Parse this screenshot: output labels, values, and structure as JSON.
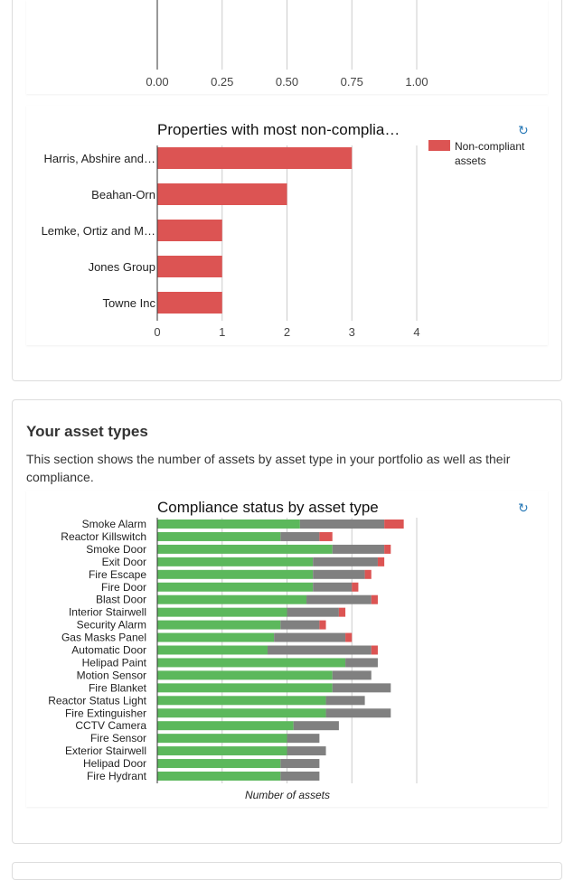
{
  "colors": {
    "bar_red": "#dc5453",
    "green": "#5cb85c",
    "gray": "#808080",
    "grid": "#cccccc",
    "axis": "#333333",
    "refresh": "#2a7ab7"
  },
  "top_axis": {
    "ticks": [
      "0.00",
      "0.25",
      "0.50",
      "0.75",
      "1.00"
    ]
  },
  "properties_chart": {
    "refresh_icon": "refresh-icon",
    "legend_label": "Non-compliant assets"
  },
  "asset_section": {
    "title": "Your asset types",
    "description": "This section shows the number of assets by asset type in your portfolio as well as their compliance.",
    "refresh_icon": "refresh-icon"
  },
  "chart_data": [
    {
      "type": "bar",
      "orientation": "horizontal",
      "title": "",
      "xlim": [
        0,
        1
      ],
      "x_ticks": [
        "0.00",
        "0.25",
        "0.50",
        "0.75",
        "1.00"
      ],
      "grid": true
    },
    {
      "type": "bar",
      "orientation": "horizontal",
      "title": "Properties with most non-complia…",
      "categories": [
        "Harris, Abshire and…",
        "Beahan-Orn",
        "Lemke, Ortiz and M…",
        "Jones Group",
        "Towne Inc"
      ],
      "series": [
        {
          "name": "Non-compliant assets",
          "values": [
            3,
            2,
            1,
            1,
            1
          ]
        }
      ],
      "xlim": [
        0,
        4
      ],
      "x_ticks": [
        "0",
        "1",
        "2",
        "3",
        "4"
      ],
      "legend": "right",
      "grid": true
    },
    {
      "type": "bar",
      "orientation": "horizontal",
      "stacked": true,
      "title": "Compliance status by asset type",
      "xlabel": "Number of assets",
      "xlim": [
        0,
        4
      ],
      "grid": true,
      "categories": [
        "Smoke Alarm",
        "Reactor Killswitch",
        "Smoke Door",
        "Exit Door",
        "Fire Escape",
        "Fire Door",
        "Blast Door",
        "Interior Stairwell",
        "Security Alarm",
        "Gas Masks Panel",
        "Automatic Door",
        "Helipad Paint",
        "Motion Sensor",
        "Fire Blanket",
        "Reactor Status Light",
        "Fire Extinguisher",
        "CCTV Camera",
        "Fire Sensor",
        "Exterior Stairwell",
        "Helipad Door",
        "Fire Hydrant"
      ],
      "series": [
        {
          "values": [
            2.2,
            1.9,
            2.7,
            2.4,
            2.4,
            2.4,
            2.3,
            2.0,
            1.9,
            1.8,
            1.7,
            2.9,
            2.7,
            2.7,
            2.6,
            2.6,
            2.1,
            2.0,
            2.0,
            1.9,
            1.9
          ]
        },
        {
          "values": [
            1.3,
            0.6,
            0.8,
            1.0,
            0.8,
            0.6,
            1.0,
            0.8,
            0.6,
            1.1,
            1.6,
            0.5,
            0.6,
            0.9,
            0.6,
            1.0,
            0.7,
            0.5,
            0.6,
            0.6,
            0.6
          ]
        },
        {
          "values": [
            0.3,
            0.2,
            0.1,
            0.1,
            0.1,
            0.1,
            0.1,
            0.1,
            0.1,
            0.1,
            0.1,
            0,
            0,
            0,
            0,
            0,
            0,
            0,
            0,
            0,
            0
          ]
        }
      ]
    }
  ]
}
